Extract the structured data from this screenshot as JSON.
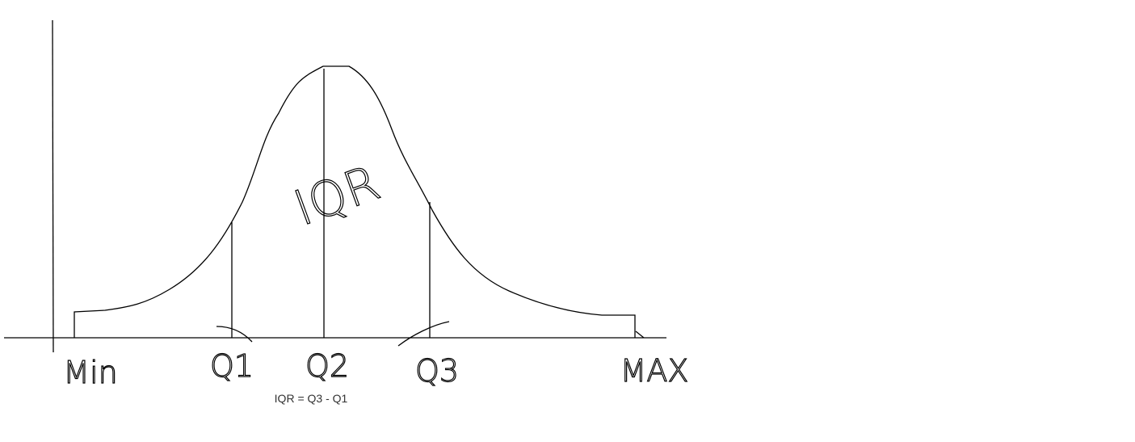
{
  "axis_labels": [
    "Min",
    "Q1",
    "Q2",
    "Q3",
    "MAX"
  ],
  "region_label": "IQR",
  "formula": "IQR = Q3 - Q1"
}
